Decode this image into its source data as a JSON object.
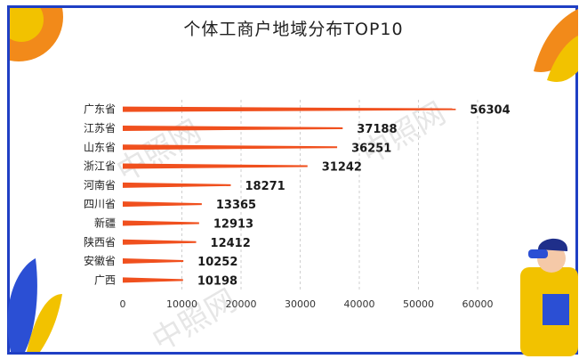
{
  "chart_data": {
    "type": "bar",
    "orientation": "horizontal",
    "title": "个体工商户地域分布TOP10",
    "categories": [
      "广东省",
      "江苏省",
      "山东省",
      "浙江省",
      "河南省",
      "四川省",
      "新疆",
      "陕西省",
      "安徽省",
      "广西"
    ],
    "values": [
      56304,
      37188,
      36251,
      31242,
      18271,
      13365,
      12913,
      12412,
      10252,
      10198
    ],
    "xlim": [
      0,
      60000
    ],
    "xticks": [
      "0",
      "10000",
      "20000",
      "30000",
      "40000",
      "50000",
      "60000"
    ],
    "grid": "dashed vertical",
    "bar_color": "#f0501e"
  },
  "watermark": "中照网",
  "colors": {
    "frame": "#1f3fc4",
    "accent": "#f28a1a",
    "bar": "#f0501e"
  }
}
